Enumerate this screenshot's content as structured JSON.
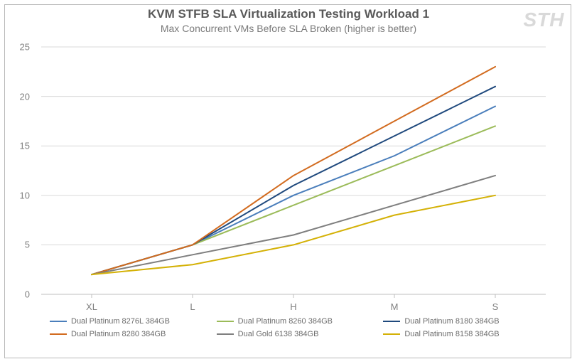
{
  "title": "KVM STFB SLA Virtualization Testing Workload 1",
  "subtitle": "Max Concurrent VMs Before SLA Broken (higher is better)",
  "watermark": "STH",
  "chart": {
    "type": "line",
    "background_color": "#ffffff",
    "grid_color": "#d9d9d9",
    "axis_color": "#bfbfbf",
    "tick_font_size": 13,
    "tick_color": "#808080",
    "legend_font_size": 11,
    "ylim": [
      0,
      25
    ],
    "ytick_step": 5,
    "categories": [
      "XL",
      "L",
      "H",
      "M",
      "S"
    ],
    "line_width": 2,
    "series": [
      {
        "name": "Dual Platinum 8276L 384GB",
        "color": "#4a7ebb",
        "values": [
          2,
          5,
          10,
          14,
          19
        ]
      },
      {
        "name": "Dual Platinum 8260 384GB",
        "color": "#9bbb59",
        "values": [
          2,
          5,
          9,
          13,
          17
        ]
      },
      {
        "name": "Dual Platinum 8180 384GB",
        "color": "#1f497d",
        "values": [
          2,
          5,
          11,
          16,
          21
        ]
      },
      {
        "name": "Dual Platinum 8280 384GB",
        "color": "#d26b1f",
        "values": [
          2,
          5,
          12,
          17.5,
          23
        ]
      },
      {
        "name": "Dual Gold 6138 384GB",
        "color": "#7f7f7f",
        "values": [
          2,
          4,
          6,
          9,
          12
        ]
      },
      {
        "name": "Dual Platinum 8158 384GB",
        "color": "#d4b106",
        "values": [
          2,
          3,
          5,
          8,
          10
        ]
      }
    ]
  }
}
